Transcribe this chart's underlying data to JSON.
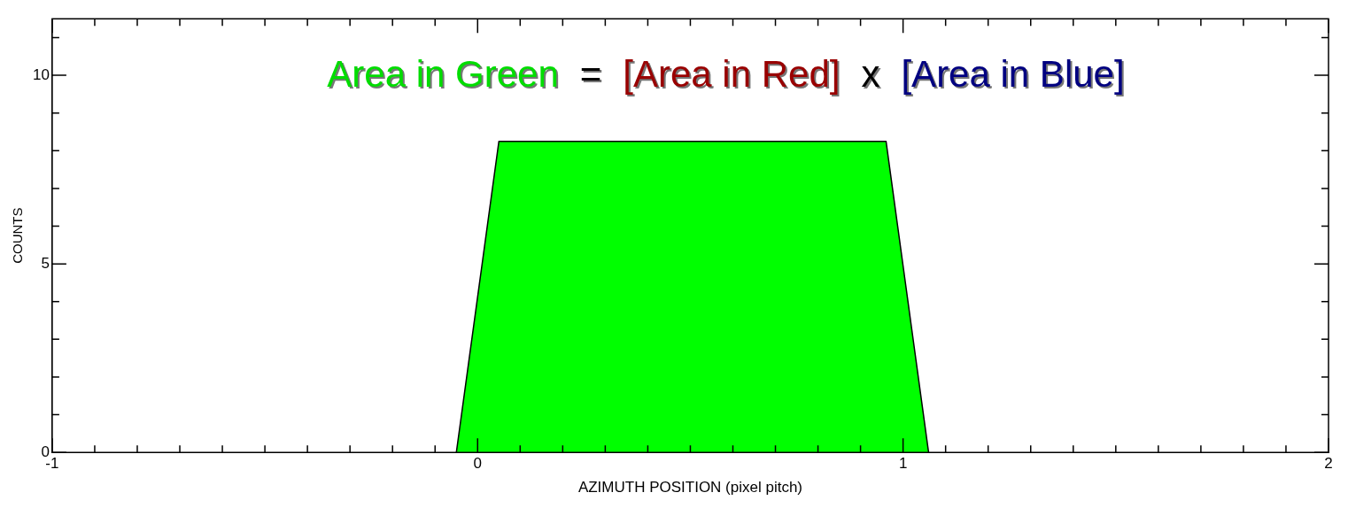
{
  "chart_data": {
    "type": "area",
    "xlabel": "AZIMUTH POSITION (pixel pitch)",
    "ylabel": "COUNTS",
    "annotations": [
      "Area in Green",
      "=",
      "[Area in Red]",
      "x",
      "[Area in Blue]"
    ],
    "x": [
      -0.05,
      0.05,
      0.96,
      1.06
    ],
    "series": [
      {
        "color": "#00ff00",
        "values": [
          0,
          8.25,
          8.25,
          0
        ]
      }
    ],
    "xlim": [
      -1,
      2
    ],
    "xticks": [
      -1,
      {
        "value": -0.9,
        "label": null
      },
      {
        "value": -0.8,
        "label": null
      },
      {
        "value": -0.7,
        "label": null
      },
      {
        "value": -0.6,
        "label": null
      },
      {
        "value": -0.5,
        "label": null
      },
      {
        "value": -0.4,
        "label": null
      },
      {
        "value": -0.3,
        "label": null
      },
      {
        "value": -0.2,
        "label": null
      },
      {
        "value": -0.1,
        "label": null
      },
      0,
      {
        "value": 0.1,
        "label": null
      },
      {
        "value": 0.2,
        "label": null
      },
      {
        "value": 0.3,
        "label": null
      },
      {
        "value": 0.4,
        "label": null
      },
      {
        "value": 0.5,
        "label": null
      },
      {
        "value": 0.6,
        "label": null
      },
      {
        "value": 0.7,
        "label": null
      },
      {
        "value": 0.8,
        "label": null
      },
      {
        "value": 0.9,
        "label": null
      },
      1,
      {
        "value": 1.1,
        "label": null
      },
      {
        "value": 1.2,
        "label": null
      },
      {
        "value": 1.3,
        "label": null
      },
      {
        "value": 1.4,
        "label": null
      },
      {
        "value": 1.5,
        "label": null
      },
      {
        "value": 1.6,
        "label": null
      },
      {
        "value": 1.7,
        "label": null
      },
      {
        "value": 1.8,
        "label": null
      },
      {
        "value": 1.9,
        "label": null
      },
      2
    ],
    "ylim": [
      0,
      11.5
    ],
    "yticks": [
      0,
      {
        "value": 1,
        "label": null
      },
      {
        "value": 2,
        "label": null
      },
      {
        "value": 3,
        "label": null
      },
      {
        "value": 4,
        "label": null
      },
      5,
      {
        "value": 6,
        "label": null
      },
      {
        "value": 7,
        "label": null
      },
      {
        "value": 8,
        "label": null
      },
      {
        "value": 9,
        "label": null
      },
      10,
      {
        "value": 11,
        "label": null
      }
    ],
    "grid": false,
    "legend": false,
    "marker": "none",
    "line_style": "solid"
  }
}
